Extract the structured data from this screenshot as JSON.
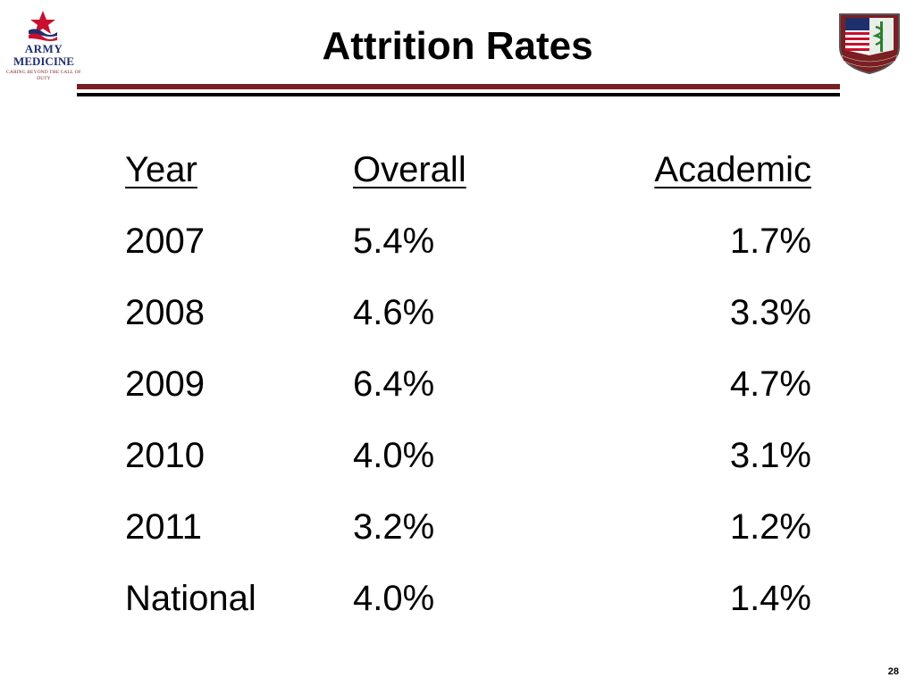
{
  "logo": {
    "line1": "ARMY",
    "line2": "MEDICINE",
    "tagline": "CARING BEYOND THE CALL OF DUTY",
    "icon": "army-medicine-logo"
  },
  "crest": {
    "icon": "army-medical-crest"
  },
  "title": "Attrition Rates",
  "table": {
    "headers": {
      "year": "Year",
      "overall": "Overall",
      "academic": "Academic"
    },
    "rows": [
      {
        "year": "2007",
        "overall": "5.4%",
        "academic": "1.7%"
      },
      {
        "year": "2008",
        "overall": "4.6%",
        "academic": "3.3%"
      },
      {
        "year": "2009",
        "overall": "6.4%",
        "academic": "4.7%"
      },
      {
        "year": "2010",
        "overall": "4.0%",
        "academic": "3.1%"
      },
      {
        "year": "2011",
        "overall": "3.2%",
        "academic": "1.2%"
      },
      {
        "year": "National",
        "overall": "4.0%",
        "academic": "1.4%"
      }
    ]
  },
  "page_number": "28",
  "colors": {
    "brand_red": "#7a1f22",
    "brand_blue": "#1f2f6b"
  }
}
